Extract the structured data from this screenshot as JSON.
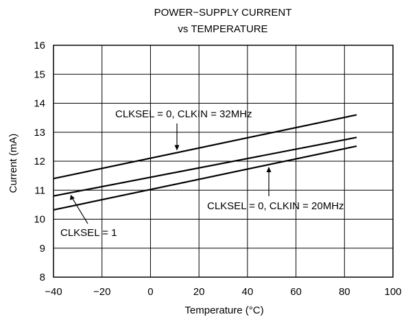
{
  "chart_data": {
    "type": "line",
    "title": [
      "POWER−SUPPLY CURRENT",
      "vs TEMPERATURE"
    ],
    "xlabel": "Temperature (°C)",
    "ylabel": "Current (mA)",
    "xlim": [
      -40,
      100
    ],
    "ylim": [
      8,
      16
    ],
    "xticks": [
      -40,
      -20,
      0,
      20,
      40,
      60,
      80,
      100
    ],
    "xtick_labels": [
      "−40",
      "−20",
      "0",
      "20",
      "40",
      "60",
      "80",
      "100"
    ],
    "yticks": [
      8,
      9,
      10,
      11,
      12,
      13,
      14,
      15,
      16
    ],
    "grid": true,
    "series": [
      {
        "name": "CLKSEL = 0, CLKIN = 32MHz",
        "x": [
          -40,
          85
        ],
        "y": [
          11.4,
          13.6
        ]
      },
      {
        "name": "CLKSEL = 1",
        "x": [
          -40,
          85
        ],
        "y": [
          10.8,
          12.82
        ]
      },
      {
        "name": "CLKSEL = 0, CLKIN = 20MHz",
        "x": [
          -40,
          85
        ],
        "y": [
          10.32,
          12.52
        ]
      }
    ],
    "annotations": [
      {
        "text": "CLKSEL = 0, CLKIN = 32MHz",
        "series": 0
      },
      {
        "text": "CLKSEL = 1",
        "series": 1
      },
      {
        "text": "CLKSEL = 0, CLKIN = 20MHz",
        "series": 2
      }
    ]
  }
}
